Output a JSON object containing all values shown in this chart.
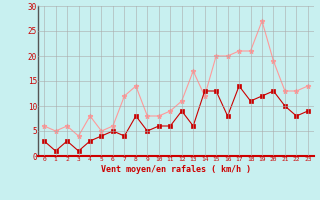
{
  "xlabel": "Vent moyen/en rafales ( km/h )",
  "background_color": "#c8f0f0",
  "grid_color": "#aaaaaa",
  "x": [
    0,
    1,
    2,
    3,
    4,
    5,
    6,
    7,
    8,
    9,
    10,
    11,
    12,
    13,
    14,
    15,
    16,
    17,
    18,
    19,
    20,
    21,
    22,
    23
  ],
  "vent_moyen": [
    3,
    1,
    3,
    1,
    3,
    4,
    5,
    4,
    8,
    5,
    6,
    6,
    9,
    6,
    13,
    13,
    8,
    14,
    11,
    12,
    13,
    10,
    8,
    9
  ],
  "en_rafales": [
    6,
    5,
    6,
    4,
    8,
    5,
    6,
    12,
    14,
    8,
    8,
    9,
    11,
    17,
    12,
    20,
    20,
    21,
    21,
    27,
    19,
    13,
    13,
    14
  ],
  "color_moyen": "#cc0000",
  "color_rafales": "#ff9999",
  "ylim": [
    0,
    30
  ],
  "yticks": [
    0,
    5,
    10,
    15,
    20,
    25,
    30
  ],
  "xticks": [
    0,
    1,
    2,
    3,
    4,
    5,
    6,
    7,
    8,
    9,
    10,
    11,
    12,
    13,
    14,
    15,
    16,
    17,
    18,
    19,
    20,
    21,
    22,
    23
  ]
}
